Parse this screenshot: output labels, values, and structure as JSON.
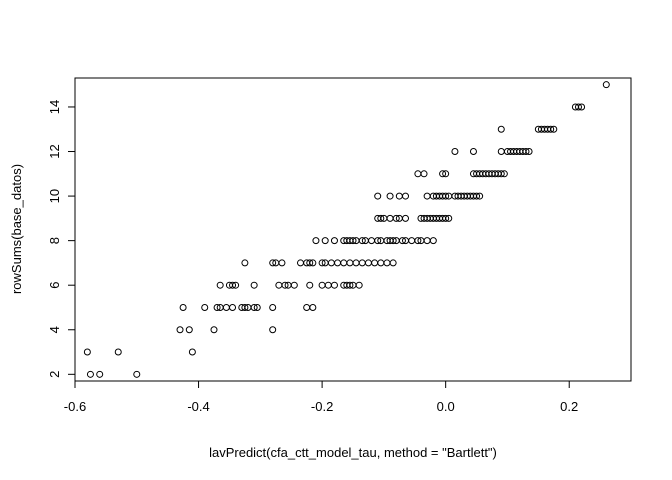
{
  "chart_data": {
    "type": "scatter",
    "title": "",
    "xlabel": "lavPredict(cfa_ctt_model_tau, method = \"Bartlett\")",
    "ylabel": "rowSums(base_datos)",
    "xlim": [
      -0.6,
      0.3
    ],
    "ylim": [
      1.7,
      15.3
    ],
    "xticks": [
      -0.6,
      -0.4,
      -0.2,
      0.0,
      0.2
    ],
    "yticks": [
      2,
      4,
      6,
      8,
      10,
      12,
      14
    ],
    "xtick_labels": [
      "-0.6",
      "-0.4",
      "-0.2",
      "0.0",
      "0.2"
    ],
    "ytick_labels": [
      "2",
      "4",
      "6",
      "8",
      "10",
      "12",
      "14"
    ],
    "grid": false,
    "marker": "open-circle",
    "color": "#000000",
    "points": [
      {
        "x": -0.58,
        "y": 3
      },
      {
        "x": -0.53,
        "y": 3
      },
      {
        "x": -0.41,
        "y": 3
      },
      {
        "x": -0.575,
        "y": 2
      },
      {
        "x": -0.56,
        "y": 2
      },
      {
        "x": -0.5,
        "y": 2
      },
      {
        "x": -0.43,
        "y": 4
      },
      {
        "x": -0.415,
        "y": 4
      },
      {
        "x": -0.375,
        "y": 4
      },
      {
        "x": -0.28,
        "y": 4
      },
      {
        "x": -0.425,
        "y": 5
      },
      {
        "x": -0.39,
        "y": 5
      },
      {
        "x": -0.37,
        "y": 5
      },
      {
        "x": -0.365,
        "y": 5
      },
      {
        "x": -0.355,
        "y": 5
      },
      {
        "x": -0.345,
        "y": 5
      },
      {
        "x": -0.33,
        "y": 5
      },
      {
        "x": -0.325,
        "y": 5
      },
      {
        "x": -0.32,
        "y": 5
      },
      {
        "x": -0.31,
        "y": 5
      },
      {
        "x": -0.305,
        "y": 5
      },
      {
        "x": -0.28,
        "y": 5
      },
      {
        "x": -0.225,
        "y": 5
      },
      {
        "x": -0.215,
        "y": 5
      },
      {
        "x": -0.365,
        "y": 6
      },
      {
        "x": -0.35,
        "y": 6
      },
      {
        "x": -0.345,
        "y": 6
      },
      {
        "x": -0.34,
        "y": 6
      },
      {
        "x": -0.31,
        "y": 6
      },
      {
        "x": -0.27,
        "y": 6
      },
      {
        "x": -0.26,
        "y": 6
      },
      {
        "x": -0.255,
        "y": 6
      },
      {
        "x": -0.245,
        "y": 6
      },
      {
        "x": -0.22,
        "y": 6
      },
      {
        "x": -0.2,
        "y": 6
      },
      {
        "x": -0.19,
        "y": 6
      },
      {
        "x": -0.18,
        "y": 6
      },
      {
        "x": -0.165,
        "y": 6
      },
      {
        "x": -0.16,
        "y": 6
      },
      {
        "x": -0.155,
        "y": 6
      },
      {
        "x": -0.15,
        "y": 6
      },
      {
        "x": -0.14,
        "y": 6
      },
      {
        "x": -0.325,
        "y": 7
      },
      {
        "x": -0.28,
        "y": 7
      },
      {
        "x": -0.275,
        "y": 7
      },
      {
        "x": -0.265,
        "y": 7
      },
      {
        "x": -0.235,
        "y": 7
      },
      {
        "x": -0.225,
        "y": 7
      },
      {
        "x": -0.22,
        "y": 7
      },
      {
        "x": -0.215,
        "y": 7
      },
      {
        "x": -0.2,
        "y": 7
      },
      {
        "x": -0.195,
        "y": 7
      },
      {
        "x": -0.185,
        "y": 7
      },
      {
        "x": -0.175,
        "y": 7
      },
      {
        "x": -0.165,
        "y": 7
      },
      {
        "x": -0.155,
        "y": 7
      },
      {
        "x": -0.145,
        "y": 7
      },
      {
        "x": -0.135,
        "y": 7
      },
      {
        "x": -0.125,
        "y": 7
      },
      {
        "x": -0.115,
        "y": 7
      },
      {
        "x": -0.105,
        "y": 7
      },
      {
        "x": -0.095,
        "y": 7
      },
      {
        "x": -0.085,
        "y": 7
      },
      {
        "x": -0.21,
        "y": 8
      },
      {
        "x": -0.195,
        "y": 8
      },
      {
        "x": -0.18,
        "y": 8
      },
      {
        "x": -0.165,
        "y": 8
      },
      {
        "x": -0.16,
        "y": 8
      },
      {
        "x": -0.155,
        "y": 8
      },
      {
        "x": -0.15,
        "y": 8
      },
      {
        "x": -0.145,
        "y": 8
      },
      {
        "x": -0.135,
        "y": 8
      },
      {
        "x": -0.13,
        "y": 8
      },
      {
        "x": -0.12,
        "y": 8
      },
      {
        "x": -0.11,
        "y": 8
      },
      {
        "x": -0.105,
        "y": 8
      },
      {
        "x": -0.095,
        "y": 8
      },
      {
        "x": -0.09,
        "y": 8
      },
      {
        "x": -0.085,
        "y": 8
      },
      {
        "x": -0.08,
        "y": 8
      },
      {
        "x": -0.07,
        "y": 8
      },
      {
        "x": -0.065,
        "y": 8
      },
      {
        "x": -0.055,
        "y": 8
      },
      {
        "x": -0.045,
        "y": 8
      },
      {
        "x": -0.04,
        "y": 8
      },
      {
        "x": -0.03,
        "y": 8
      },
      {
        "x": -0.02,
        "y": 8
      },
      {
        "x": -0.11,
        "y": 9
      },
      {
        "x": -0.105,
        "y": 9
      },
      {
        "x": -0.1,
        "y": 9
      },
      {
        "x": -0.09,
        "y": 9
      },
      {
        "x": -0.08,
        "y": 9
      },
      {
        "x": -0.075,
        "y": 9
      },
      {
        "x": -0.065,
        "y": 9
      },
      {
        "x": -0.04,
        "y": 9
      },
      {
        "x": -0.035,
        "y": 9
      },
      {
        "x": -0.03,
        "y": 9
      },
      {
        "x": -0.025,
        "y": 9
      },
      {
        "x": -0.02,
        "y": 9
      },
      {
        "x": -0.015,
        "y": 9
      },
      {
        "x": -0.01,
        "y": 9
      },
      {
        "x": -0.005,
        "y": 9
      },
      {
        "x": 0.0,
        "y": 9
      },
      {
        "x": 0.005,
        "y": 9
      },
      {
        "x": -0.11,
        "y": 10
      },
      {
        "x": -0.09,
        "y": 10
      },
      {
        "x": -0.075,
        "y": 10
      },
      {
        "x": -0.065,
        "y": 10
      },
      {
        "x": -0.03,
        "y": 10
      },
      {
        "x": -0.02,
        "y": 10
      },
      {
        "x": -0.015,
        "y": 10
      },
      {
        "x": -0.01,
        "y": 10
      },
      {
        "x": -0.005,
        "y": 10
      },
      {
        "x": 0.0,
        "y": 10
      },
      {
        "x": 0.005,
        "y": 10
      },
      {
        "x": 0.015,
        "y": 10
      },
      {
        "x": 0.02,
        "y": 10
      },
      {
        "x": 0.025,
        "y": 10
      },
      {
        "x": 0.03,
        "y": 10
      },
      {
        "x": 0.035,
        "y": 10
      },
      {
        "x": 0.04,
        "y": 10
      },
      {
        "x": 0.045,
        "y": 10
      },
      {
        "x": 0.05,
        "y": 10
      },
      {
        "x": 0.055,
        "y": 10
      },
      {
        "x": -0.045,
        "y": 11
      },
      {
        "x": -0.035,
        "y": 11
      },
      {
        "x": -0.005,
        "y": 11
      },
      {
        "x": 0.0,
        "y": 11
      },
      {
        "x": 0.045,
        "y": 11
      },
      {
        "x": 0.05,
        "y": 11
      },
      {
        "x": 0.055,
        "y": 11
      },
      {
        "x": 0.06,
        "y": 11
      },
      {
        "x": 0.065,
        "y": 11
      },
      {
        "x": 0.07,
        "y": 11
      },
      {
        "x": 0.075,
        "y": 11
      },
      {
        "x": 0.08,
        "y": 11
      },
      {
        "x": 0.085,
        "y": 11
      },
      {
        "x": 0.09,
        "y": 11
      },
      {
        "x": 0.095,
        "y": 11
      },
      {
        "x": 0.015,
        "y": 12
      },
      {
        "x": 0.045,
        "y": 12
      },
      {
        "x": 0.09,
        "y": 12
      },
      {
        "x": 0.1,
        "y": 12
      },
      {
        "x": 0.105,
        "y": 12
      },
      {
        "x": 0.11,
        "y": 12
      },
      {
        "x": 0.115,
        "y": 12
      },
      {
        "x": 0.12,
        "y": 12
      },
      {
        "x": 0.125,
        "y": 12
      },
      {
        "x": 0.13,
        "y": 12
      },
      {
        "x": 0.135,
        "y": 12
      },
      {
        "x": 0.09,
        "y": 13
      },
      {
        "x": 0.15,
        "y": 13
      },
      {
        "x": 0.155,
        "y": 13
      },
      {
        "x": 0.16,
        "y": 13
      },
      {
        "x": 0.165,
        "y": 13
      },
      {
        "x": 0.17,
        "y": 13
      },
      {
        "x": 0.175,
        "y": 13
      },
      {
        "x": 0.21,
        "y": 14
      },
      {
        "x": 0.215,
        "y": 14
      },
      {
        "x": 0.22,
        "y": 14
      },
      {
        "x": 0.26,
        "y": 15
      }
    ]
  }
}
